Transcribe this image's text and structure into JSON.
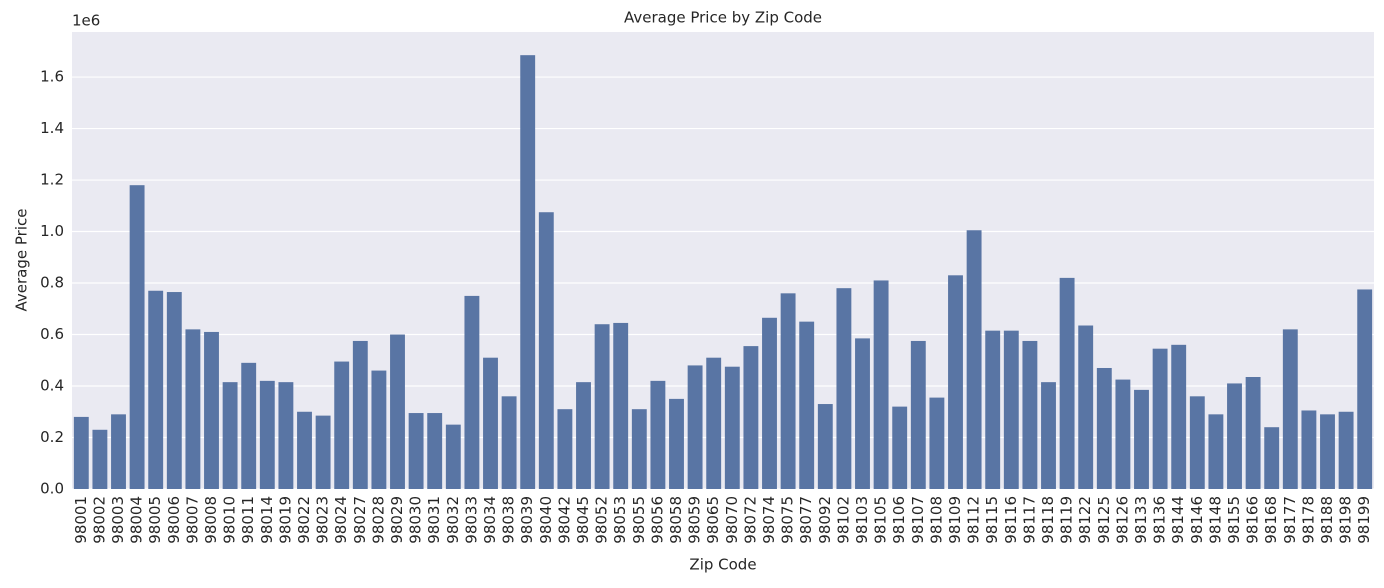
{
  "chart_data": {
    "type": "bar",
    "title": "Average Price by Zip Code",
    "x_label": "Zip Code",
    "y_label": "Average Price",
    "y_offset_label": "1e6",
    "categories": [
      "98001",
      "98002",
      "98003",
      "98004",
      "98005",
      "98006",
      "98007",
      "98008",
      "98010",
      "98011",
      "98014",
      "98019",
      "98022",
      "98023",
      "98024",
      "98027",
      "98028",
      "98029",
      "98030",
      "98031",
      "98032",
      "98033",
      "98034",
      "98038",
      "98039",
      "98040",
      "98042",
      "98045",
      "98052",
      "98053",
      "98055",
      "98056",
      "98058",
      "98059",
      "98065",
      "98070",
      "98072",
      "98074",
      "98075",
      "98077",
      "98092",
      "98102",
      "98103",
      "98105",
      "98106",
      "98107",
      "98108",
      "98109",
      "98112",
      "98115",
      "98116",
      "98117",
      "98118",
      "98119",
      "98122",
      "98125",
      "98126",
      "98133",
      "98136",
      "98144",
      "98146",
      "98148",
      "98155",
      "98166",
      "98168",
      "98177",
      "98178",
      "98188",
      "98198",
      "98199"
    ],
    "values": [
      0.28,
      0.23,
      0.29,
      1.18,
      0.77,
      0.765,
      0.62,
      0.61,
      0.415,
      0.49,
      0.42,
      0.415,
      0.3,
      0.285,
      0.495,
      0.575,
      0.46,
      0.6,
      0.295,
      0.295,
      0.25,
      0.75,
      0.51,
      0.36,
      1.685,
      1.075,
      0.31,
      0.415,
      0.64,
      0.645,
      0.31,
      0.42,
      0.35,
      0.48,
      0.51,
      0.475,
      0.555,
      0.665,
      0.76,
      0.65,
      0.33,
      0.78,
      0.585,
      0.81,
      0.32,
      0.575,
      0.355,
      0.83,
      1.005,
      0.615,
      0.615,
      0.575,
      0.415,
      0.82,
      0.635,
      0.47,
      0.425,
      0.385,
      0.545,
      0.56,
      0.36,
      0.29,
      0.41,
      0.435,
      0.24,
      0.62,
      0.305,
      0.29,
      0.3,
      0.775
    ],
    "color": "#5975a4",
    "background": "#eaeaf2",
    "grid": true,
    "ylim": [
      0,
      1.775
    ],
    "yticks": [
      {
        "value": 0,
        "label": "0.0"
      },
      0.2,
      0.4,
      0.6,
      0.8,
      {
        "value": 1,
        "label": "1.0"
      },
      1.2,
      1.4,
      1.6
    ]
  }
}
